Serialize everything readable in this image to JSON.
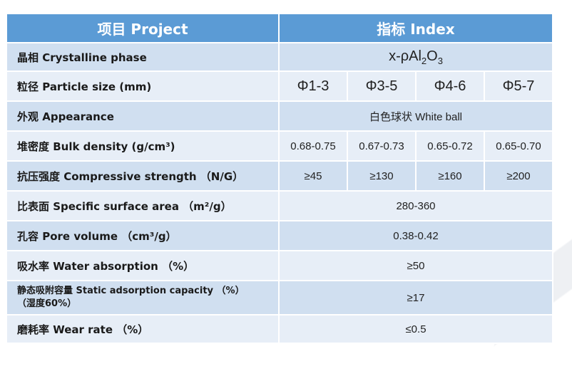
{
  "header": {
    "col1": "项目  Project",
    "col2": "指标  Index"
  },
  "rows": {
    "phase": {
      "label": "晶相  Crystalline phase",
      "value_main": "x-ρAl",
      "sub1": "2",
      "mid": "O",
      "sub2": "3"
    },
    "size": {
      "label": "粒径  Particle size  (mm)",
      "values": [
        "Φ1-3",
        "Φ3-5",
        "Φ4-6",
        "Φ5-7"
      ]
    },
    "appearance": {
      "label": "外观  Appearance",
      "value": "白色球状  White ball"
    },
    "density": {
      "label": "堆密度  Bulk density  (g/cm³)",
      "values": [
        "0.68-0.75",
        "0.67-0.73",
        "0.65-0.72",
        "0.65-0.70"
      ]
    },
    "strength": {
      "label": "抗压强度  Compressive strength  （N/G）",
      "values": [
        "≥45",
        "≥130",
        "≥160",
        "≥200"
      ]
    },
    "surface": {
      "label": "比表面  Specific surface area  （m²/g）",
      "value": "280-360"
    },
    "pore": {
      "label": "孔容  Pore volume  （cm³/g）",
      "value": "0.38-0.42"
    },
    "water": {
      "label": "吸水率  Water absorption  （%）",
      "value": "≥50"
    },
    "static": {
      "label_line1": "静态吸附容量  Static adsorption capacity  （%）",
      "label_line2": "（湿度60%）",
      "value": "≥17"
    },
    "wear": {
      "label": "磨耗率  Wear rate  （%）",
      "value": "≤0.5"
    }
  }
}
